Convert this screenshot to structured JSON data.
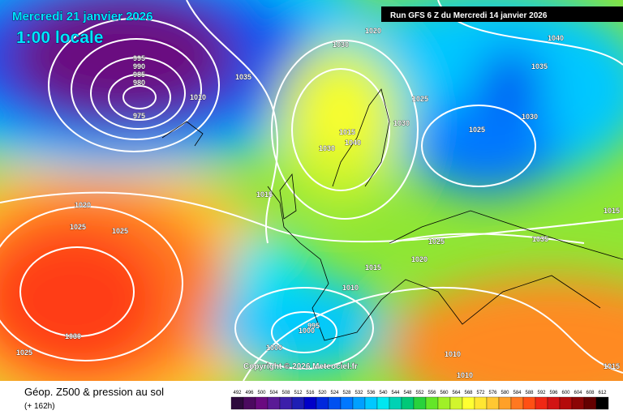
{
  "header": {
    "valid_time": "Mercredi 21 janvier 2026",
    "local_time": "1:00 locale",
    "run": "Run GFS 6 Z du Mercredi 14 janvier 2026"
  },
  "footer": {
    "title": "Géop. Z500 & pression au sol",
    "lead": "(+ 162h)",
    "copyright": "Copyright © 2026 Meteociel.fr"
  },
  "colorbar": {
    "levels": [
      492,
      496,
      500,
      504,
      508,
      512,
      516,
      520,
      524,
      528,
      532,
      536,
      540,
      544,
      548,
      552,
      556,
      560,
      564,
      568,
      572,
      576,
      580,
      584,
      588,
      592,
      596,
      600,
      604,
      608,
      612
    ],
    "colors": [
      "#2d0a3c",
      "#4b0a5f",
      "#6a0a80",
      "#5a1a96",
      "#3c1eaa",
      "#1e1eb4",
      "#0000c8",
      "#0028dc",
      "#0050f0",
      "#0078ff",
      "#00a0ff",
      "#00c8ff",
      "#00e6f0",
      "#00d2b4",
      "#00c878",
      "#28d23c",
      "#64e628",
      "#a0f028",
      "#d2f52d",
      "#ffff32",
      "#ffe632",
      "#ffc832",
      "#ffa028",
      "#ff7820",
      "#ff5014",
      "#f02814",
      "#d21414",
      "#b40a0a",
      "#8c0505",
      "#640000",
      "#000000"
    ]
  },
  "isobar_labels": [
    "1030",
    "1020",
    "1040",
    "1035",
    "1025",
    "1030",
    "1030",
    "1025",
    "1015",
    "1040",
    "1030",
    "1015",
    "1020",
    "1025",
    "1025",
    "1025",
    "1035",
    "1020",
    "1015",
    "1010",
    "995",
    "1000",
    "1000",
    "1010",
    "1010",
    "1030",
    "1025",
    "1015",
    "1015",
    "995",
    "990",
    "985",
    "980",
    "975",
    "1035",
    "1010"
  ]
}
